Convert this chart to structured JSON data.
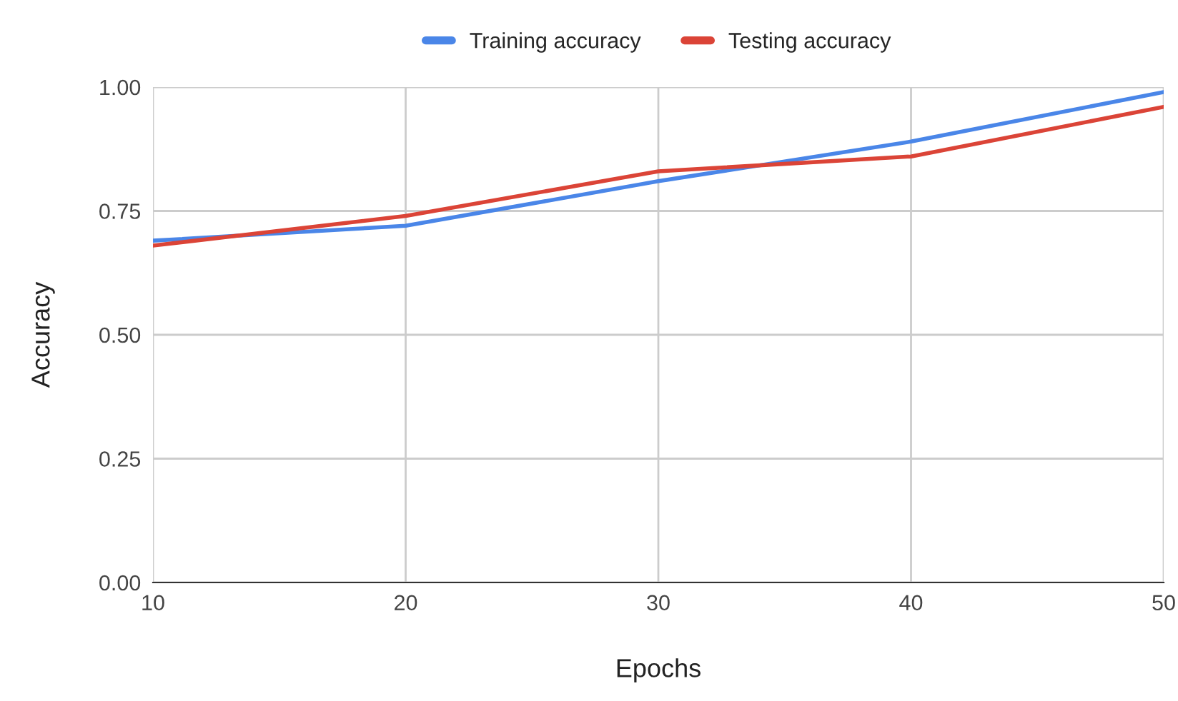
{
  "chart_data": {
    "type": "line",
    "xlabel": "Epochs",
    "ylabel": "Accuracy",
    "x": [
      10,
      20,
      30,
      40,
      50
    ],
    "series": [
      {
        "name": "Training accuracy",
        "color": "#4a86e8",
        "values": [
          0.69,
          0.72,
          0.81,
          0.89,
          0.99
        ]
      },
      {
        "name": "Testing accuracy",
        "color": "#db4437",
        "values": [
          0.68,
          0.74,
          0.83,
          0.86,
          0.96
        ]
      }
    ],
    "xlim": [
      10,
      50
    ],
    "xticks": [
      10,
      20,
      30,
      40,
      50
    ],
    "ylim": [
      0,
      1
    ],
    "yticks": [
      {
        "value": 0,
        "label": "0.00"
      },
      {
        "value": 0.25,
        "label": "0.25"
      },
      {
        "value": 0.5,
        "label": "0.50"
      },
      {
        "value": 0.75,
        "label": "0.75"
      },
      {
        "value": 1,
        "label": "1.00"
      }
    ],
    "grid": true,
    "legend": "top",
    "line_style": "solid",
    "marker": "none"
  }
}
